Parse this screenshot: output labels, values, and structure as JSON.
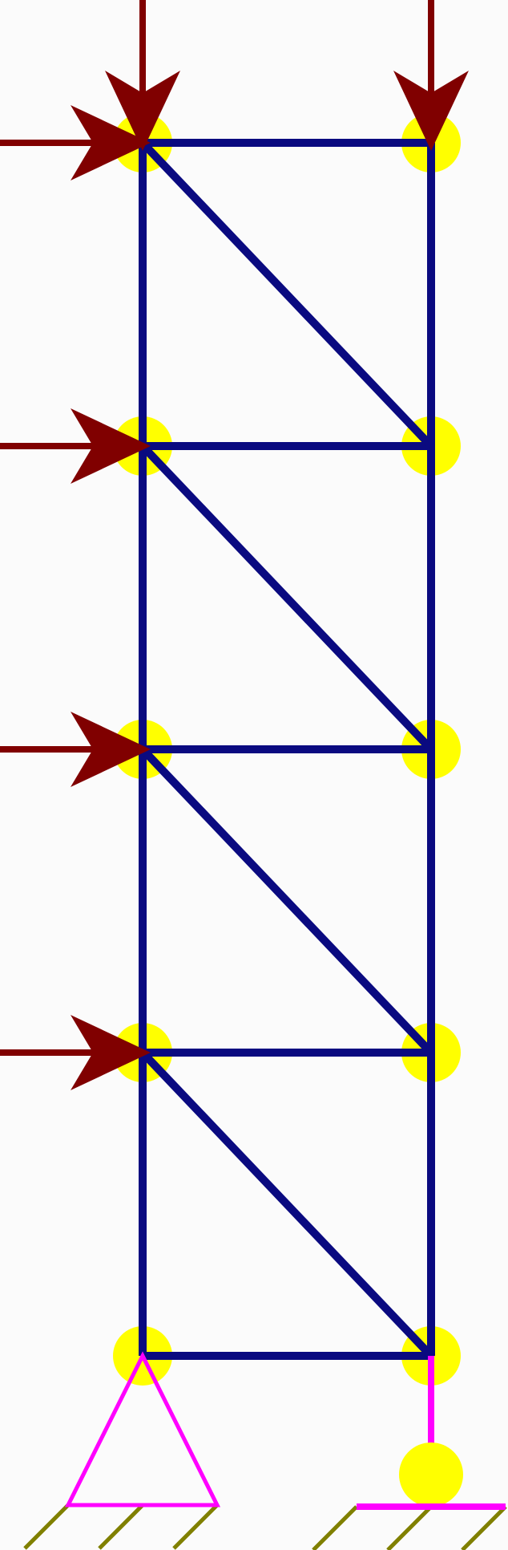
{
  "colors": {
    "background": "#fbfbfb",
    "member": "#0a0a80",
    "joint": "#ffff00",
    "load": "#800000",
    "support": "#ff00ff",
    "ground": "#808000"
  },
  "structure": {
    "joints": [
      {
        "id": "L0",
        "column": "left",
        "level": 0
      },
      {
        "id": "L1",
        "column": "left",
        "level": 1
      },
      {
        "id": "L2",
        "column": "left",
        "level": 2
      },
      {
        "id": "L3",
        "column": "left",
        "level": 3
      },
      {
        "id": "L4",
        "column": "left",
        "level": 4
      },
      {
        "id": "R0",
        "column": "right",
        "level": 0
      },
      {
        "id": "R1",
        "column": "right",
        "level": 1
      },
      {
        "id": "R2",
        "column": "right",
        "level": 2
      },
      {
        "id": "R3",
        "column": "right",
        "level": 3
      },
      {
        "id": "R4",
        "column": "right",
        "level": 4
      }
    ],
    "members": [
      [
        "L0",
        "R0"
      ],
      [
        "L1",
        "R1"
      ],
      [
        "L2",
        "R2"
      ],
      [
        "L3",
        "R3"
      ],
      [
        "L4",
        "R4"
      ],
      [
        "L0",
        "L1"
      ],
      [
        "L1",
        "L2"
      ],
      [
        "L2",
        "L3"
      ],
      [
        "L3",
        "L4"
      ],
      [
        "R0",
        "R1"
      ],
      [
        "R1",
        "R2"
      ],
      [
        "R2",
        "R3"
      ],
      [
        "R3",
        "R4"
      ],
      [
        "L1",
        "R0"
      ],
      [
        "L2",
        "R1"
      ],
      [
        "L3",
        "R2"
      ],
      [
        "L4",
        "R3"
      ]
    ],
    "loads": [
      {
        "joint": "L4",
        "direction": "down"
      },
      {
        "joint": "R4",
        "direction": "down"
      },
      {
        "joint": "L4",
        "direction": "right"
      },
      {
        "joint": "L3",
        "direction": "right"
      },
      {
        "joint": "L2",
        "direction": "right"
      },
      {
        "joint": "L1",
        "direction": "right"
      }
    ],
    "supports": [
      {
        "joint": "L0",
        "type": "pin"
      },
      {
        "joint": "R0",
        "type": "roller"
      }
    ]
  }
}
